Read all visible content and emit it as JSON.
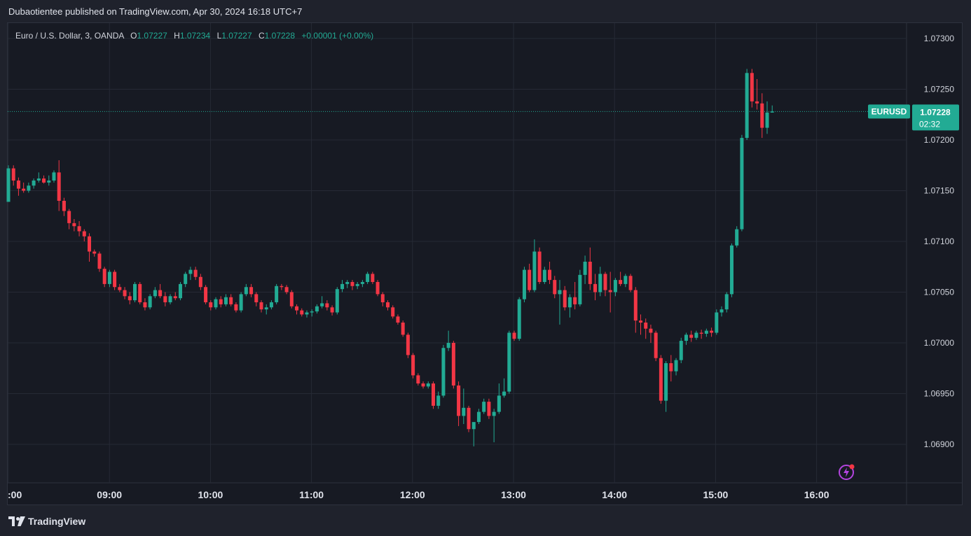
{
  "header": {
    "published_text": "Dubaotientee published on TradingView.com, Apr 30, 2024 16:18 UTC+7"
  },
  "legend": {
    "symbol": "Euro / U.S. Dollar, 3, OANDA",
    "o_label": "O",
    "o_value": "1.07227",
    "h_label": "H",
    "h_value": "1.07234",
    "l_label": "L",
    "l_value": "1.07227",
    "c_label": "C",
    "c_value": "1.07228",
    "change": "+0.00001 (+0.00%)"
  },
  "price_tag": {
    "symbol": "EURUSD",
    "price": "1.07228",
    "countdown": "02:32"
  },
  "footer": {
    "brand": "TradingView"
  },
  "colors": {
    "up": "#22ab94",
    "down": "#f23645",
    "background": "#171a23",
    "grid": "#262a35",
    "axis_text": "#d1d4dc"
  },
  "chart_data": {
    "type": "candlestick",
    "symbol": "EURUSD",
    "interval_minutes": 3,
    "x_ticks": [
      ":00",
      "09:00",
      "10:00",
      "11:00",
      "12:00",
      "13:00",
      "14:00",
      "15:00",
      "16:00"
    ],
    "y_ticks": [
      "1.07300",
      "1.07250",
      "1.07200",
      "1.07150",
      "1.07100",
      "1.07050",
      "1.07000",
      "1.06950",
      "1.06900"
    ],
    "ylim": [
      1.06865,
      1.0733
    ],
    "last_price": 1.07228,
    "grid": true,
    "candles": [
      [
        1.07139,
        1.07175,
        1.07139,
        1.07172
      ],
      [
        1.07172,
        1.07175,
        1.07155,
        1.0716
      ],
      [
        1.0716,
        1.07163,
        1.07145,
        1.07152
      ],
      [
        1.07152,
        1.07158,
        1.07148,
        1.0715
      ],
      [
        1.0715,
        1.07158,
        1.07148,
        1.07155
      ],
      [
        1.07155,
        1.07162,
        1.07152,
        1.0716
      ],
      [
        1.0716,
        1.07168,
        1.07158,
        1.07162
      ],
      [
        1.07162,
        1.07165,
        1.07157,
        1.07158
      ],
      [
        1.07158,
        1.07165,
        1.07155,
        1.0716
      ],
      [
        1.0716,
        1.0717,
        1.07158,
        1.07168
      ],
      [
        1.07168,
        1.0718,
        1.0713,
        1.0714
      ],
      [
        1.0714,
        1.07143,
        1.07125,
        1.0713
      ],
      [
        1.0713,
        1.07132,
        1.07112,
        1.07118
      ],
      [
        1.07118,
        1.07122,
        1.0711,
        1.07115
      ],
      [
        1.07115,
        1.0712,
        1.07105,
        1.0711
      ],
      [
        1.0711,
        1.07112,
        1.071,
        1.07105
      ],
      [
        1.07105,
        1.07108,
        1.0708,
        1.0709
      ],
      [
        1.0709,
        1.07092,
        1.07085,
        1.07088
      ],
      [
        1.07088,
        1.0709,
        1.0707,
        1.07073
      ],
      [
        1.07073,
        1.07075,
        1.07055,
        1.07058
      ],
      [
        1.07058,
        1.07072,
        1.07055,
        1.0707
      ],
      [
        1.0707,
        1.07072,
        1.07052,
        1.07055
      ],
      [
        1.07055,
        1.07058,
        1.0705,
        1.07052
      ],
      [
        1.07052,
        1.07055,
        1.07043,
        1.07046
      ],
      [
        1.07046,
        1.0705,
        1.07038,
        1.07042
      ],
      [
        1.07042,
        1.0706,
        1.0704,
        1.07058
      ],
      [
        1.07058,
        1.0706,
        1.07038,
        1.0704
      ],
      [
        1.0704,
        1.07044,
        1.07032,
        1.07035
      ],
      [
        1.07035,
        1.07048,
        1.07033,
        1.07046
      ],
      [
        1.07046,
        1.07055,
        1.07044,
        1.07052
      ],
      [
        1.07052,
        1.07058,
        1.07044,
        1.07046
      ],
      [
        1.07046,
        1.0705,
        1.07036,
        1.0704
      ],
      [
        1.0704,
        1.07048,
        1.07038,
        1.07046
      ],
      [
        1.07046,
        1.0705,
        1.07042,
        1.07044
      ],
      [
        1.07044,
        1.0706,
        1.07042,
        1.07058
      ],
      [
        1.07058,
        1.0707,
        1.07055,
        1.07068
      ],
      [
        1.07068,
        1.07075,
        1.07062,
        1.07072
      ],
      [
        1.07072,
        1.07075,
        1.07062,
        1.07065
      ],
      [
        1.07065,
        1.07068,
        1.07052,
        1.07055
      ],
      [
        1.07055,
        1.07057,
        1.07038,
        1.0704
      ],
      [
        1.0704,
        1.07042,
        1.07032,
        1.07035
      ],
      [
        1.07035,
        1.07045,
        1.07033,
        1.07043
      ],
      [
        1.07043,
        1.07046,
        1.07035,
        1.07038
      ],
      [
        1.07038,
        1.07048,
        1.07036,
        1.07045
      ],
      [
        1.07045,
        1.07048,
        1.07036,
        1.07038
      ],
      [
        1.07038,
        1.0704,
        1.0703,
        1.07032
      ],
      [
        1.07032,
        1.0705,
        1.0703,
        1.07048
      ],
      [
        1.07048,
        1.07058,
        1.07046,
        1.07055
      ],
      [
        1.07055,
        1.07058,
        1.07045,
        1.07048
      ],
      [
        1.07048,
        1.0705,
        1.07036,
        1.0704
      ],
      [
        1.0704,
        1.07042,
        1.0703,
        1.07033
      ],
      [
        1.07033,
        1.07038,
        1.07028,
        1.07035
      ],
      [
        1.07035,
        1.07042,
        1.07033,
        1.0704
      ],
      [
        1.0704,
        1.07058,
        1.07038,
        1.07056
      ],
      [
        1.07056,
        1.07058,
        1.07052,
        1.07055
      ],
      [
        1.07055,
        1.07057,
        1.07048,
        1.0705
      ],
      [
        1.0705,
        1.07052,
        1.07034,
        1.07036
      ],
      [
        1.07036,
        1.07038,
        1.07028,
        1.07032
      ],
      [
        1.07032,
        1.07034,
        1.07026,
        1.07028
      ],
      [
        1.07028,
        1.07032,
        1.07025,
        1.0703
      ],
      [
        1.0703,
        1.07033,
        1.07026,
        1.07031
      ],
      [
        1.07031,
        1.07038,
        1.07029,
        1.07036
      ],
      [
        1.07036,
        1.07046,
        1.07034,
        1.07039
      ],
      [
        1.07039,
        1.07042,
        1.07032,
        1.07035
      ],
      [
        1.07035,
        1.07037,
        1.07027,
        1.0703
      ],
      [
        1.0703,
        1.07055,
        1.07028,
        1.07053
      ],
      [
        1.07053,
        1.07062,
        1.0705,
        1.07058
      ],
      [
        1.07058,
        1.07062,
        1.07054,
        1.0706
      ],
      [
        1.0706,
        1.07062,
        1.07052,
        1.07056
      ],
      [
        1.07056,
        1.0706,
        1.07053,
        1.07058
      ],
      [
        1.07058,
        1.07062,
        1.07055,
        1.0706
      ],
      [
        1.0706,
        1.0707,
        1.07058,
        1.07068
      ],
      [
        1.07068,
        1.0707,
        1.07058,
        1.0706
      ],
      [
        1.0706,
        1.07062,
        1.07046,
        1.07048
      ],
      [
        1.07048,
        1.0705,
        1.07036,
        1.0704
      ],
      [
        1.0704,
        1.07042,
        1.07032,
        1.07035
      ],
      [
        1.07035,
        1.07037,
        1.07024,
        1.07026
      ],
      [
        1.07026,
        1.07028,
        1.07018,
        1.0702
      ],
      [
        1.0702,
        1.07022,
        1.07006,
        1.07008
      ],
      [
        1.07008,
        1.0701,
        1.06985,
        1.06988
      ],
      [
        1.06988,
        1.0699,
        1.06965,
        1.06968
      ],
      [
        1.06968,
        1.0697,
        1.06958,
        1.0696
      ],
      [
        1.0696,
        1.06962,
        1.06955,
        1.06957
      ],
      [
        1.06957,
        1.06962,
        1.06955,
        1.0696
      ],
      [
        1.0696,
        1.06962,
        1.06935,
        1.06938
      ],
      [
        1.06938,
        1.06952,
        1.06935,
        1.06948
      ],
      [
        1.06948,
        1.06998,
        1.06946,
        1.06995
      ],
      [
        1.06995,
        1.07012,
        1.06992,
        1.07
      ],
      [
        1.07,
        1.07002,
        1.06955,
        1.06958
      ],
      [
        1.06958,
        1.06962,
        1.06918,
        1.06928
      ],
      [
        1.06928,
        1.06955,
        1.0692,
        1.06936
      ],
      [
        1.06936,
        1.06938,
        1.06912,
        1.06915
      ],
      [
        1.06915,
        1.06918,
        1.06898,
        1.06922
      ],
      [
        1.06922,
        1.06935,
        1.0692,
        1.06932
      ],
      [
        1.06932,
        1.06945,
        1.0693,
        1.06942
      ],
      [
        1.06942,
        1.06945,
        1.06925,
        1.06928
      ],
      [
        1.06928,
        1.06935,
        1.06902,
        1.06932
      ],
      [
        1.06932,
        1.0696,
        1.0693,
        1.06948
      ],
      [
        1.06948,
        1.06965,
        1.06946,
        1.06952
      ],
      [
        1.06952,
        1.07012,
        1.0695,
        1.0701
      ],
      [
        1.0701,
        1.07012,
        1.07002,
        1.07004
      ],
      [
        1.07004,
        1.07045,
        1.07002,
        1.07043
      ],
      [
        1.07043,
        1.07075,
        1.0704,
        1.07072
      ],
      [
        1.07072,
        1.07078,
        1.0705,
        1.07052
      ],
      [
        1.07052,
        1.07102,
        1.0705,
        1.0709
      ],
      [
        1.0709,
        1.07094,
        1.07058,
        1.0706
      ],
      [
        1.0706,
        1.07075,
        1.07058,
        1.07072
      ],
      [
        1.07072,
        1.0708,
        1.07058,
        1.07062
      ],
      [
        1.07062,
        1.07066,
        1.07044,
        1.07048
      ],
      [
        1.07048,
        1.07062,
        1.07018,
        1.07052
      ],
      [
        1.07052,
        1.07056,
        1.07032,
        1.07035
      ],
      [
        1.07035,
        1.07048,
        1.07025,
        1.07045
      ],
      [
        1.07045,
        1.0706,
        1.07033,
        1.07038
      ],
      [
        1.07038,
        1.07072,
        1.07036,
        1.07067
      ],
      [
        1.07067,
        1.07086,
        1.07058,
        1.0708
      ],
      [
        1.0708,
        1.07094,
        1.07052,
        1.07058
      ],
      [
        1.07058,
        1.07068,
        1.07042,
        1.0705
      ],
      [
        1.0705,
        1.07075,
        1.07046,
        1.07068
      ],
      [
        1.07068,
        1.0707,
        1.07046,
        1.07052
      ],
      [
        1.07052,
        1.0707,
        1.0703,
        1.0705
      ],
      [
        1.0705,
        1.07064,
        1.07046,
        1.07062
      ],
      [
        1.07062,
        1.0707,
        1.07056,
        1.07058
      ],
      [
        1.07058,
        1.07068,
        1.07055,
        1.07066
      ],
      [
        1.07066,
        1.07068,
        1.0705,
        1.07052
      ],
      [
        1.07052,
        1.07055,
        1.0701,
        1.07022
      ],
      [
        1.07022,
        1.07028,
        1.07008,
        1.0702
      ],
      [
        1.0702,
        1.07024,
        1.07004,
        1.07014
      ],
      [
        1.07014,
        1.07018,
        1.07,
        1.0701
      ],
      [
        1.0701,
        1.07012,
        1.06982,
        1.06985
      ],
      [
        1.06985,
        1.06988,
        1.0694,
        1.06943
      ],
      [
        1.06943,
        1.06982,
        1.06932,
        1.0698
      ],
      [
        1.0698,
        1.06988,
        1.06962,
        1.06972
      ],
      [
        1.06972,
        1.06985,
        1.06968,
        1.06983
      ],
      [
        1.06983,
        1.07005,
        1.0698,
        1.07002
      ],
      [
        1.07002,
        1.0701,
        1.06998,
        1.07008
      ],
      [
        1.07008,
        1.07012,
        1.07001,
        1.07005
      ],
      [
        1.07005,
        1.07012,
        1.07003,
        1.0701
      ],
      [
        1.0701,
        1.07013,
        1.07004,
        1.07009
      ],
      [
        1.07009,
        1.07014,
        1.07006,
        1.07012
      ],
      [
        1.07012,
        1.07015,
        1.07006,
        1.0701
      ],
      [
        1.0701,
        1.07033,
        1.07008,
        1.0703
      ],
      [
        1.0703,
        1.07036,
        1.07026,
        1.07033
      ],
      [
        1.07033,
        1.0705,
        1.0703,
        1.07048
      ],
      [
        1.07048,
        1.07098,
        1.07045,
        1.07096
      ],
      [
        1.07096,
        1.07115,
        1.07094,
        1.07112
      ],
      [
        1.07112,
        1.07205,
        1.0711,
        1.07202
      ],
      [
        1.07202,
        1.0727,
        1.072,
        1.07266
      ],
      [
        1.07266,
        1.0727,
        1.07232,
        1.07238
      ],
      [
        1.07238,
        1.0726,
        1.0723,
        1.07236
      ],
      [
        1.07236,
        1.07246,
        1.07202,
        1.07212
      ],
      [
        1.07212,
        1.07238,
        1.07206,
        1.07227
      ],
      [
        1.07227,
        1.07234,
        1.07227,
        1.07228
      ]
    ]
  }
}
